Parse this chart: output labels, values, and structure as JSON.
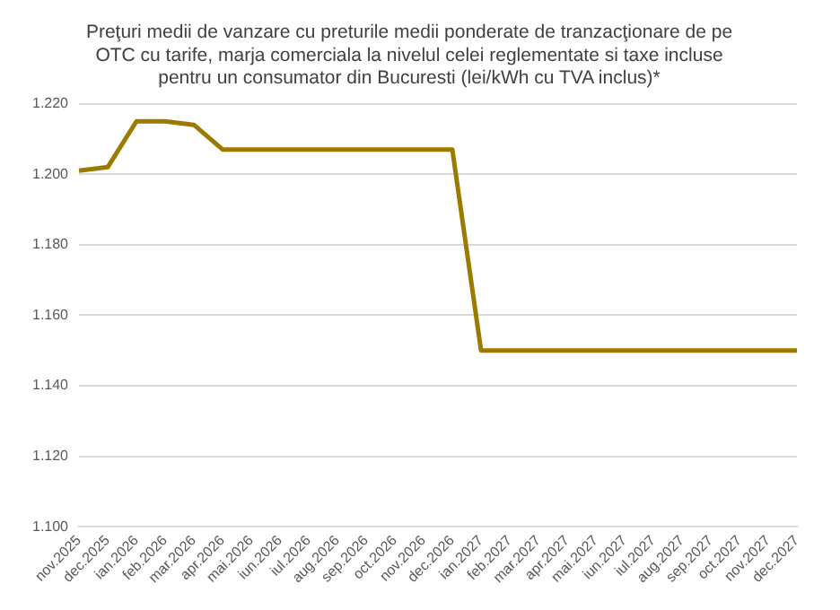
{
  "chart_data": {
    "type": "line",
    "title": "Preţuri medii de vanzare cu preturile medii ponderate de tranzacţionare de pe OTC cu tarife, marja comerciala la nivelul celei reglementate si taxe incluse pentru un consumator din Bucuresti (lei/kWh cu TVA inclus)*",
    "categories": [
      "nov.2025",
      "dec.2025",
      "ian.2026",
      "feb.2026",
      "mar.2026",
      "apr.2026",
      "mai.2026",
      "iun.2026",
      "iul.2026",
      "aug.2026",
      "sep.2026",
      "oct.2026",
      "nov.2026",
      "dec.2026",
      "ian.2027",
      "feb.2027",
      "mar.2027",
      "apr.2027",
      "mai.2027",
      "iun.2027",
      "iul.2027",
      "aug.2027",
      "sep.2027",
      "oct.2027",
      "nov.2027",
      "dec.2027"
    ],
    "series": [
      {
        "color": "#9c7a00",
        "values": [
          1.201,
          1.202,
          1.215,
          1.215,
          1.214,
          1.207,
          1.207,
          1.207,
          1.207,
          1.207,
          1.207,
          1.207,
          1.207,
          1.207,
          1.15,
          1.15,
          1.15,
          1.15,
          1.15,
          1.15,
          1.15,
          1.15,
          1.15,
          1.15,
          1.15,
          1.15
        ]
      }
    ],
    "ylim": [
      1.1,
      1.22
    ],
    "yticks": [
      {
        "value": 1.1,
        "label": "1.100"
      },
      {
        "value": 1.12,
        "label": "1.120"
      },
      {
        "value": 1.14,
        "label": "1.140"
      },
      {
        "value": 1.16,
        "label": "1.160"
      },
      {
        "value": 1.18,
        "label": "1.180"
      },
      {
        "value": 1.2,
        "label": "1.200"
      },
      {
        "value": 1.22,
        "label": "1.220"
      }
    ],
    "grid": "y",
    "legend": false,
    "marker": "none",
    "line_style": "solid"
  }
}
